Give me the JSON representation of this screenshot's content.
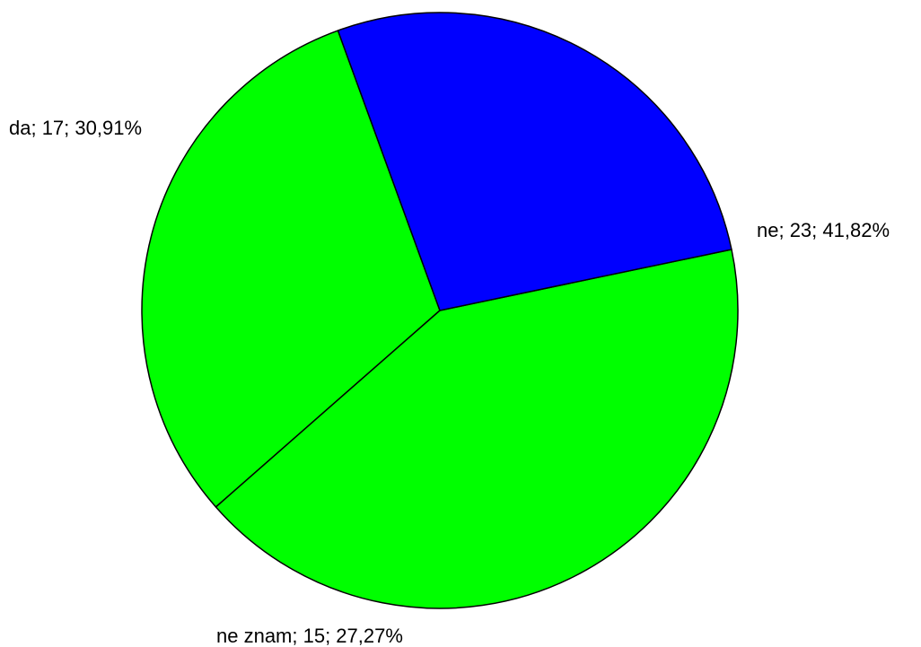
{
  "chart_data": {
    "type": "pie",
    "slices": [
      {
        "category": "da",
        "value": 17,
        "percent": 30.91,
        "label": "da; 17; 30,91%",
        "color": "#00ff00"
      },
      {
        "category": "ne",
        "value": 23,
        "percent": 41.82,
        "label": "ne; 23; 41,82%",
        "color": "#00ff00"
      },
      {
        "category": "ne znam",
        "value": 15,
        "percent": 27.27,
        "label": "ne znam; 15; 27,27%",
        "color": "#0000ff"
      }
    ],
    "start_angle_deg": 110,
    "direction": "counterclockwise"
  }
}
